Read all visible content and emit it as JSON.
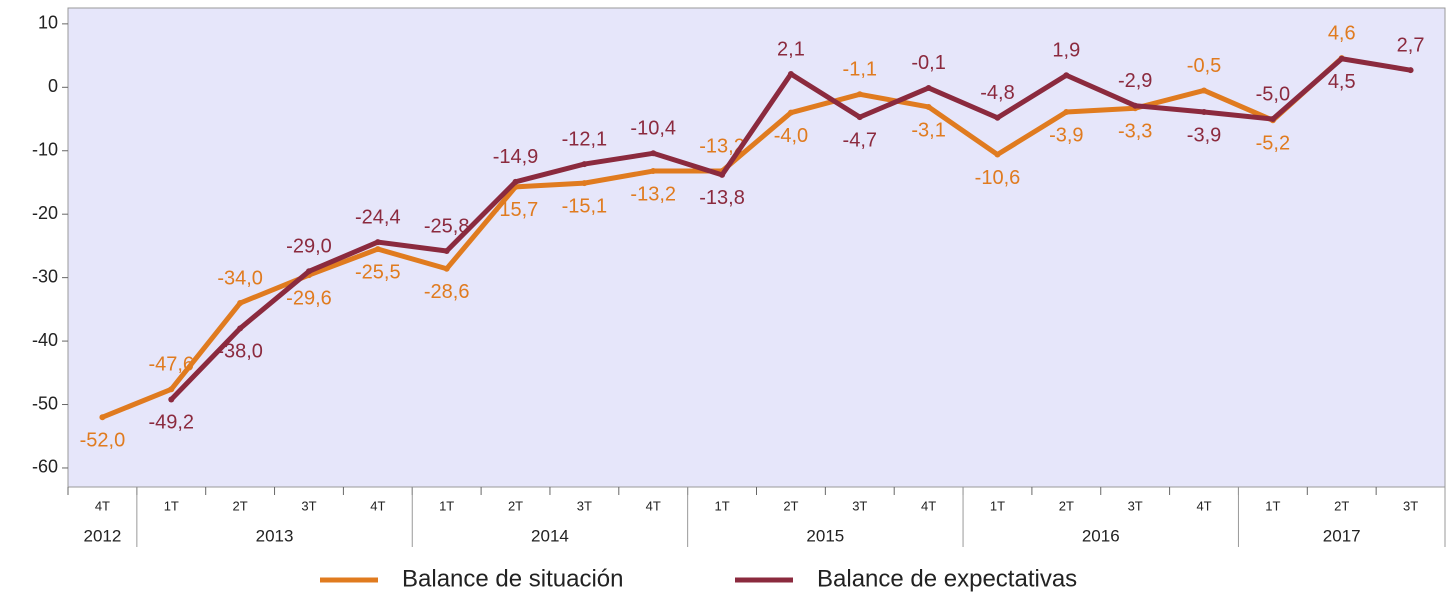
{
  "chart_data": {
    "type": "line",
    "categories": [
      "4T",
      "1T",
      "2T",
      "3T",
      "4T",
      "1T",
      "2T",
      "3T",
      "4T",
      "1T",
      "2T",
      "3T",
      "4T",
      "1T",
      "2T",
      "3T",
      "4T",
      "1T",
      "2T",
      "3T"
    ],
    "groups": [
      {
        "label": "2012",
        "count": 1
      },
      {
        "label": "2013",
        "count": 4
      },
      {
        "label": "2014",
        "count": 4
      },
      {
        "label": "2015",
        "count": 4
      },
      {
        "label": "2016",
        "count": 4
      },
      {
        "label": "2017",
        "count": 3
      }
    ],
    "series": [
      {
        "name": "Balance de situación",
        "color": "#e07b1f",
        "values": [
          -52.0,
          -47.6,
          -34.0,
          -29.6,
          -25.5,
          -28.6,
          -15.7,
          -15.1,
          -13.2,
          -13.2,
          -4.0,
          -1.1,
          -3.1,
          -10.6,
          -3.9,
          -3.3,
          -0.5,
          -5.2,
          4.6,
          null
        ],
        "value_labels": [
          "-52,0",
          "-47,6",
          "-34,0",
          "-29,6",
          "-25,5",
          "-28,6",
          "-15,7",
          "-15,1",
          "-13,2",
          "-13,2",
          "-4,0",
          "-1,1",
          "-3,1",
          "-10,6",
          "-3,9",
          "-3,3",
          "-0,5",
          "-5,2",
          "4,6",
          null
        ]
      },
      {
        "name": "Balance de expectativas",
        "color": "#8b2a3e",
        "values": [
          null,
          -49.2,
          -38.0,
          -29.0,
          -24.4,
          -25.8,
          -14.9,
          -12.1,
          -10.4,
          -13.8,
          2.1,
          -4.7,
          -0.1,
          -4.8,
          1.9,
          -2.9,
          -3.9,
          -5.0,
          4.5,
          2.7
        ],
        "value_labels": [
          null,
          "-49,2",
          "-38,0",
          "-29,0",
          "-24,4",
          "-25,8",
          "-14,9",
          "-12,1",
          "-10,4",
          "-13,8",
          "2,1",
          "-4,7",
          "-0,1",
          "-4,8",
          "1,9",
          "-2,9",
          "-3,9",
          "-5,0",
          "4,5",
          "2,7"
        ]
      }
    ],
    "ylim": [
      -63,
      12.5
    ],
    "yticks": [
      -60,
      -50,
      -40,
      -30,
      -20,
      -10,
      0,
      10
    ],
    "background": "#e6e6fa"
  }
}
